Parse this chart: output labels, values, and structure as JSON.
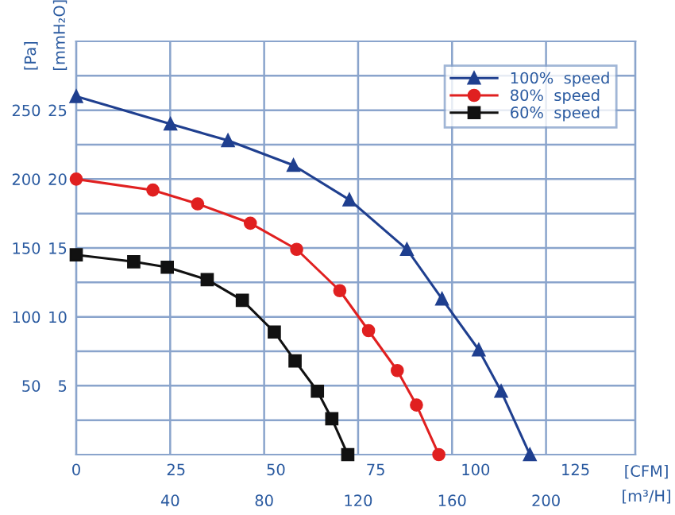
{
  "chart_data": {
    "type": "line",
    "xlabel": "[CFM]",
    "x2label": "[m³/H]",
    "ylabel": "[Pa]",
    "y2label": "[mmH₂O]",
    "xlim": [
      0,
      140
    ],
    "xticks": [
      0,
      25,
      50,
      75,
      100,
      125
    ],
    "x2lim": [
      0,
      238
    ],
    "x2ticks": [
      40,
      80,
      120,
      160,
      200
    ],
    "ylim": [
      0,
      300
    ],
    "yticks": [
      {
        "value": 25,
        "label": null
      },
      50,
      {
        "value": 75,
        "label": null
      },
      100,
      {
        "value": 125,
        "label": null
      },
      150,
      {
        "value": 175,
        "label": null
      },
      200,
      {
        "value": 225,
        "label": null
      },
      250,
      {
        "value": 275,
        "label": null
      }
    ],
    "y2lim": [
      0,
      30
    ],
    "y2ticks": [
      5,
      10,
      15,
      20,
      25
    ],
    "grid": true,
    "legend": "top right",
    "line_style": "solid",
    "series": [
      {
        "name": "100%  speed",
        "color": "#1f3f8f",
        "marker": "triangle",
        "x": [
          0,
          23.6,
          38,
          54.4,
          68.4,
          82.8,
          91.6,
          100.8,
          106.4,
          113.6
        ],
        "values": [
          260,
          240,
          228,
          210,
          185,
          149,
          113,
          76,
          46,
          0
        ]
      },
      {
        "name": "80%  speed",
        "color": "#e02020",
        "marker": "circle",
        "x": [
          0,
          19.2,
          30.4,
          43.6,
          55.2,
          66,
          73.2,
          80.4,
          85.2,
          90.8
        ],
        "values": [
          200,
          192,
          182,
          168,
          149,
          119,
          90,
          61,
          36,
          0
        ]
      },
      {
        "name": "60%  speed",
        "color": "#111111",
        "marker": "square",
        "x": [
          0,
          14.4,
          22.8,
          32.8,
          41.6,
          49.6,
          54.8,
          60.4,
          64,
          68
        ],
        "values": [
          145,
          140,
          136,
          127,
          112,
          89,
          68,
          46,
          26,
          0
        ]
      }
    ]
  }
}
